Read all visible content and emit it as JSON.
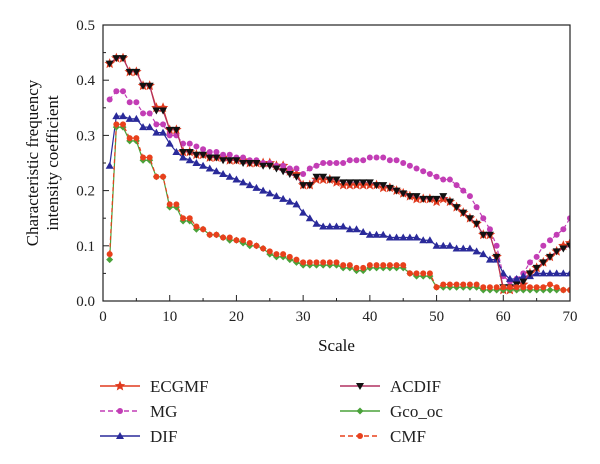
{
  "chart_data": {
    "type": "line",
    "title": "",
    "xlabel": "Scale",
    "ylabel": "Characteristic frequency intensity coefficient",
    "xlim": [
      0,
      70
    ],
    "ylim": [
      0,
      0.5
    ],
    "x_ticks": [
      "0",
      "10",
      "20",
      "30",
      "40",
      "50",
      "60",
      "70"
    ],
    "y_ticks": [
      "0.0",
      "0.1",
      "0.2",
      "0.3",
      "0.4",
      "0.5"
    ],
    "grid": false,
    "legend_position": "below",
    "x": [
      1,
      2,
      3,
      4,
      5,
      6,
      7,
      8,
      9,
      10,
      11,
      12,
      13,
      14,
      15,
      16,
      17,
      18,
      19,
      20,
      21,
      22,
      23,
      24,
      25,
      26,
      27,
      28,
      29,
      30,
      31,
      32,
      33,
      34,
      35,
      36,
      37,
      38,
      39,
      40,
      41,
      42,
      43,
      44,
      45,
      46,
      47,
      48,
      49,
      50,
      51,
      52,
      53,
      54,
      55,
      56,
      57,
      58,
      59,
      60,
      61,
      62,
      63,
      64,
      65,
      66,
      67,
      68,
      69,
      70
    ],
    "series": [
      {
        "name": "ECGMF",
        "color": "#e03a1e",
        "marker": "star",
        "dash": false,
        "values": [
          0.43,
          0.44,
          0.44,
          0.415,
          0.415,
          0.39,
          0.39,
          0.35,
          0.35,
          0.31,
          0.31,
          0.27,
          0.27,
          0.265,
          0.265,
          0.26,
          0.26,
          0.26,
          0.255,
          0.255,
          0.255,
          0.25,
          0.25,
          0.25,
          0.25,
          0.245,
          0.245,
          0.235,
          0.23,
          0.21,
          0.21,
          0.22,
          0.22,
          0.22,
          0.215,
          0.21,
          0.21,
          0.21,
          0.21,
          0.21,
          0.21,
          0.205,
          0.205,
          0.2,
          0.195,
          0.19,
          0.185,
          0.185,
          0.185,
          0.18,
          0.185,
          0.18,
          0.17,
          0.16,
          0.15,
          0.14,
          0.12,
          0.12,
          0.08,
          0.02,
          0.02,
          0.025,
          0.03,
          0.05,
          0.06,
          0.07,
          0.08,
          0.09,
          0.1,
          0.105
        ]
      },
      {
        "name": "MG",
        "color": "#c23db5",
        "marker": "circle",
        "dash": true,
        "values": [
          0.365,
          0.38,
          0.38,
          0.36,
          0.36,
          0.34,
          0.34,
          0.32,
          0.32,
          0.3,
          0.3,
          0.285,
          0.285,
          0.28,
          0.275,
          0.27,
          0.27,
          0.265,
          0.265,
          0.26,
          0.26,
          0.255,
          0.255,
          0.25,
          0.25,
          0.245,
          0.245,
          0.24,
          0.24,
          0.23,
          0.24,
          0.245,
          0.25,
          0.25,
          0.25,
          0.25,
          0.255,
          0.255,
          0.255,
          0.26,
          0.26,
          0.26,
          0.255,
          0.255,
          0.25,
          0.245,
          0.24,
          0.235,
          0.23,
          0.225,
          0.22,
          0.22,
          0.21,
          0.2,
          0.19,
          0.17,
          0.15,
          0.13,
          0.1,
          0.045,
          0.035,
          0.04,
          0.05,
          0.07,
          0.08,
          0.1,
          0.11,
          0.12,
          0.13,
          0.15
        ]
      },
      {
        "name": "DIF",
        "color": "#2a2a9a",
        "marker": "triangle",
        "dash": false,
        "values": [
          0.245,
          0.335,
          0.335,
          0.33,
          0.33,
          0.315,
          0.315,
          0.305,
          0.305,
          0.285,
          0.27,
          0.26,
          0.255,
          0.25,
          0.245,
          0.24,
          0.235,
          0.23,
          0.225,
          0.22,
          0.215,
          0.21,
          0.205,
          0.2,
          0.195,
          0.19,
          0.185,
          0.18,
          0.175,
          0.16,
          0.15,
          0.14,
          0.135,
          0.135,
          0.135,
          0.135,
          0.13,
          0.13,
          0.125,
          0.12,
          0.12,
          0.12,
          0.115,
          0.115,
          0.115,
          0.115,
          0.115,
          0.11,
          0.11,
          0.1,
          0.1,
          0.1,
          0.095,
          0.095,
          0.095,
          0.09,
          0.085,
          0.075,
          0.075,
          0.05,
          0.04,
          0.04,
          0.045,
          0.045,
          0.05,
          0.05,
          0.05,
          0.05,
          0.05,
          0.05
        ]
      },
      {
        "name": "ACDIF",
        "color": "#b03060",
        "marker": "down-triangle",
        "dash": false,
        "values": [
          0.43,
          0.44,
          0.44,
          0.415,
          0.415,
          0.39,
          0.39,
          0.345,
          0.345,
          0.31,
          0.31,
          0.27,
          0.27,
          0.265,
          0.265,
          0.26,
          0.26,
          0.255,
          0.255,
          0.255,
          0.25,
          0.25,
          0.25,
          0.245,
          0.245,
          0.24,
          0.235,
          0.23,
          0.225,
          0.21,
          0.21,
          0.225,
          0.225,
          0.22,
          0.22,
          0.215,
          0.215,
          0.215,
          0.215,
          0.215,
          0.21,
          0.21,
          0.205,
          0.2,
          0.195,
          0.19,
          0.19,
          0.185,
          0.185,
          0.185,
          0.19,
          0.18,
          0.17,
          0.16,
          0.15,
          0.14,
          0.12,
          0.12,
          0.08,
          0.025,
          0.025,
          0.03,
          0.035,
          0.05,
          0.06,
          0.07,
          0.08,
          0.09,
          0.095,
          0.1
        ]
      },
      {
        "name": "Gco_oc",
        "color": "#4aa23a",
        "marker": "diamond",
        "dash": false,
        "values": [
          0.075,
          0.315,
          0.315,
          0.29,
          0.29,
          0.255,
          0.255,
          0.225,
          0.225,
          0.17,
          0.17,
          0.145,
          0.145,
          0.13,
          0.13,
          0.12,
          0.12,
          0.115,
          0.11,
          0.11,
          0.105,
          0.1,
          0.1,
          0.095,
          0.085,
          0.08,
          0.08,
          0.075,
          0.07,
          0.065,
          0.065,
          0.065,
          0.065,
          0.065,
          0.065,
          0.06,
          0.06,
          0.055,
          0.055,
          0.06,
          0.06,
          0.06,
          0.06,
          0.06,
          0.06,
          0.05,
          0.045,
          0.045,
          0.045,
          0.025,
          0.025,
          0.025,
          0.025,
          0.025,
          0.025,
          0.025,
          0.02,
          0.02,
          0.02,
          0.02,
          0.02,
          0.02,
          0.02,
          0.02,
          0.02,
          0.02,
          0.02,
          0.02,
          0.02,
          0.02
        ]
      },
      {
        "name": "CMF",
        "color": "#e8401c",
        "marker": "circle",
        "dash": true,
        "values": [
          0.085,
          0.32,
          0.32,
          0.295,
          0.295,
          0.26,
          0.26,
          0.225,
          0.225,
          0.175,
          0.175,
          0.15,
          0.15,
          0.135,
          0.13,
          0.12,
          0.12,
          0.115,
          0.115,
          0.11,
          0.11,
          0.105,
          0.1,
          0.095,
          0.09,
          0.085,
          0.085,
          0.08,
          0.075,
          0.07,
          0.07,
          0.07,
          0.07,
          0.07,
          0.07,
          0.065,
          0.065,
          0.06,
          0.06,
          0.065,
          0.065,
          0.065,
          0.065,
          0.065,
          0.065,
          0.05,
          0.05,
          0.05,
          0.05,
          0.025,
          0.03,
          0.03,
          0.03,
          0.03,
          0.03,
          0.03,
          0.025,
          0.025,
          0.025,
          0.025,
          0.025,
          0.025,
          0.025,
          0.025,
          0.025,
          0.025,
          0.03,
          0.025,
          0.02,
          0.02
        ]
      }
    ]
  }
}
